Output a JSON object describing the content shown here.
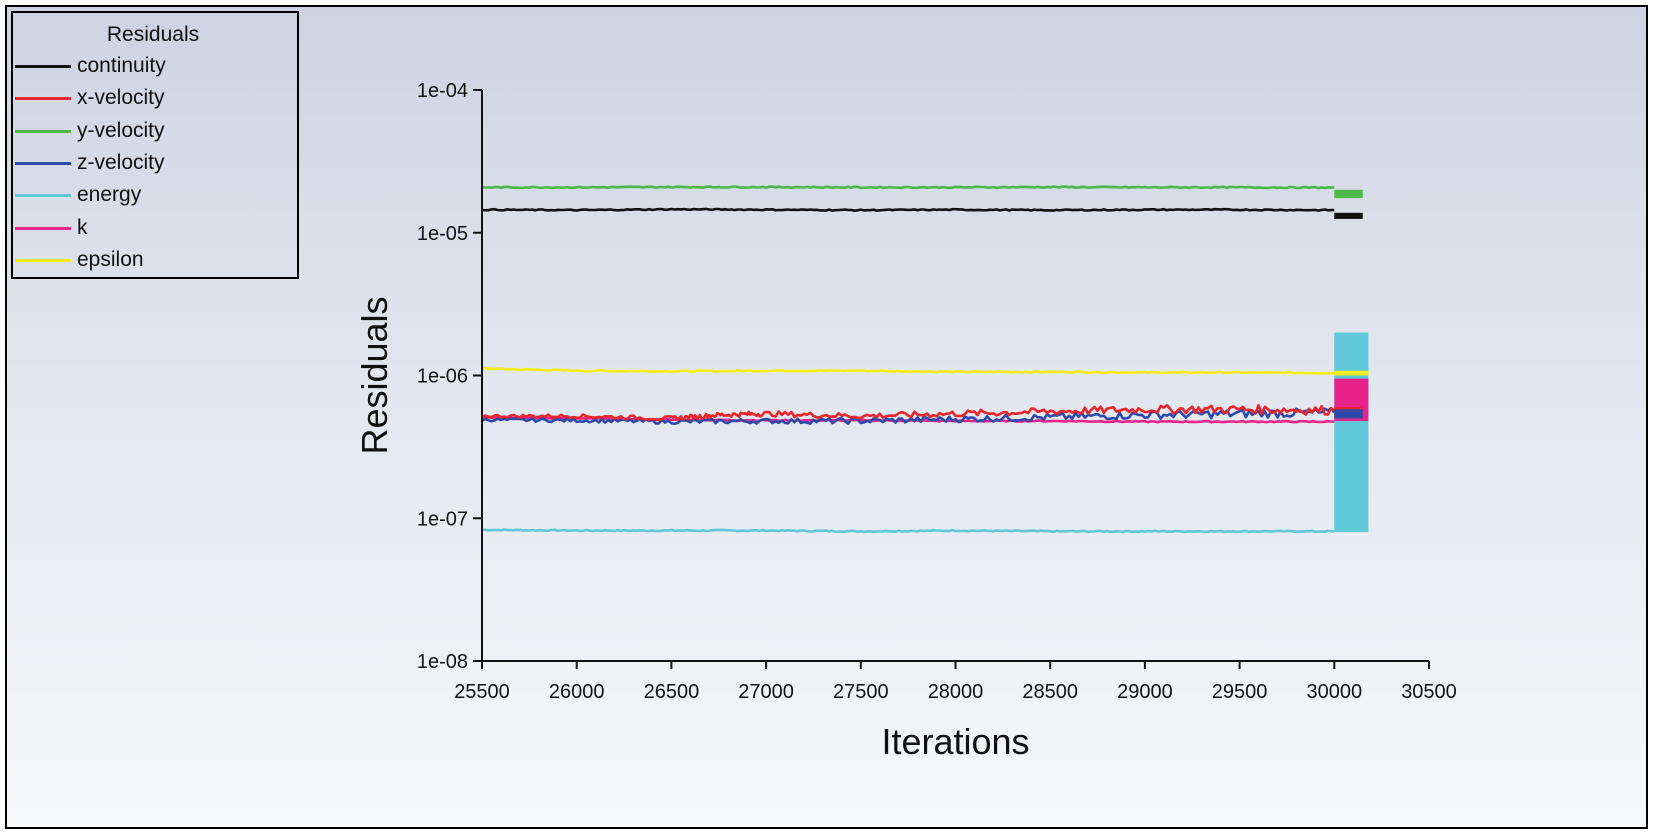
{
  "chart_data": {
    "type": "line",
    "title": "",
    "xlabel": "Iterations",
    "ylabel": "Residuals",
    "xlim": [
      25500,
      30500
    ],
    "ylim": [
      1e-08,
      0.0001
    ],
    "yscale": "log",
    "x_ticks": [
      25500,
      26000,
      26500,
      27000,
      27500,
      28000,
      28500,
      29000,
      29500,
      30000,
      30500
    ],
    "y_ticks": [
      1e-08,
      1e-07,
      1e-06,
      1e-05,
      0.0001
    ],
    "y_tick_labels": [
      "1e-08",
      "1e-07",
      "1e-06",
      "1e-05",
      "1e-04"
    ],
    "legend": {
      "title": "Residuals",
      "position": "top-left"
    },
    "series": [
      {
        "name": "continuity",
        "color": "#111111",
        "x": [
          25500,
          26000,
          26500,
          27000,
          27500,
          28000,
          28500,
          29000,
          29500,
          30000
        ],
        "values": [
          1.45e-05,
          1.44e-05,
          1.46e-05,
          1.45e-05,
          1.44e-05,
          1.45e-05,
          1.44e-05,
          1.45e-05,
          1.45e-05,
          1.44e-05
        ],
        "tail_band": {
          "x": [
            30000,
            30150
          ],
          "range": [
            1.25e-05,
            1.38e-05
          ]
        }
      },
      {
        "name": "x-velocity",
        "color": "#e8262b",
        "x": [
          25500,
          26000,
          26500,
          26750,
          27000,
          27500,
          28000,
          28500,
          29000,
          29500,
          30000
        ],
        "values": [
          5.2e-07,
          5.2e-07,
          5e-07,
          5.3e-07,
          5.4e-07,
          5.2e-07,
          5.4e-07,
          5.6e-07,
          5.8e-07,
          5.8e-07,
          5.7e-07
        ],
        "tail_band": {
          "x": [
            30000,
            30150
          ],
          "range": [
            5.3e-07,
            6e-07
          ]
        }
      },
      {
        "name": "y-velocity",
        "color": "#4cb848",
        "x": [
          25500,
          26000,
          26500,
          27000,
          27500,
          28000,
          28500,
          29000,
          29500,
          30000
        ],
        "values": [
          2.08e-05,
          2.08e-05,
          2.09e-05,
          2.09e-05,
          2.08e-05,
          2.08e-05,
          2.09e-05,
          2.08e-05,
          2.08e-05,
          2.07e-05
        ],
        "tail_band": {
          "x": [
            30000,
            30150
          ],
          "range": [
            1.75e-05,
            2e-05
          ]
        }
      },
      {
        "name": "z-velocity",
        "color": "#2e4aa8",
        "x": [
          25500,
          26000,
          26500,
          27000,
          27500,
          28000,
          28500,
          29000,
          29500,
          30000
        ],
        "values": [
          4.9e-07,
          4.85e-07,
          4.75e-07,
          4.8e-07,
          4.8e-07,
          4.95e-07,
          5.1e-07,
          5.3e-07,
          5.4e-07,
          5.5e-07
        ],
        "tail_band": {
          "x": [
            30000,
            30150
          ],
          "range": [
            5e-07,
            5.8e-07
          ]
        }
      },
      {
        "name": "energy",
        "color": "#5ec8d8",
        "x": [
          25500,
          26000,
          26500,
          27000,
          27500,
          28000,
          28500,
          29000,
          29500,
          30000
        ],
        "values": [
          8.3e-08,
          8.2e-08,
          8.2e-08,
          8.2e-08,
          8.1e-08,
          8.2e-08,
          8.1e-08,
          8.1e-08,
          8.1e-08,
          8.1e-08
        ],
        "tail_band": {
          "x": [
            30000,
            30180
          ],
          "range": [
            8e-08,
            2e-06
          ]
        }
      },
      {
        "name": "k",
        "color": "#e8238c",
        "x": [
          25500,
          26000,
          26500,
          27000,
          27500,
          28000,
          28500,
          29000,
          29500,
          30000
        ],
        "values": [
          5.1e-07,
          5e-07,
          4.9e-07,
          4.85e-07,
          4.85e-07,
          4.8e-07,
          4.8e-07,
          4.75e-07,
          4.75e-07,
          4.75e-07
        ],
        "tail_band": {
          "x": [
            30000,
            30180
          ],
          "range": [
            4.8e-07,
            9.5e-07
          ]
        }
      },
      {
        "name": "epsilon",
        "color": "#f5ea1a",
        "x": [
          25500,
          26000,
          26500,
          27000,
          27500,
          28000,
          28500,
          29000,
          29500,
          30000
        ],
        "values": [
          1.12e-06,
          1.08e-06,
          1.07e-06,
          1.08e-06,
          1.08e-06,
          1.06e-06,
          1.06e-06,
          1.05e-06,
          1.05e-06,
          1.04e-06
        ],
        "tail_band": {
          "x": [
            30000,
            30180
          ],
          "range": [
            1e-06,
            1.08e-06
          ]
        }
      }
    ]
  }
}
